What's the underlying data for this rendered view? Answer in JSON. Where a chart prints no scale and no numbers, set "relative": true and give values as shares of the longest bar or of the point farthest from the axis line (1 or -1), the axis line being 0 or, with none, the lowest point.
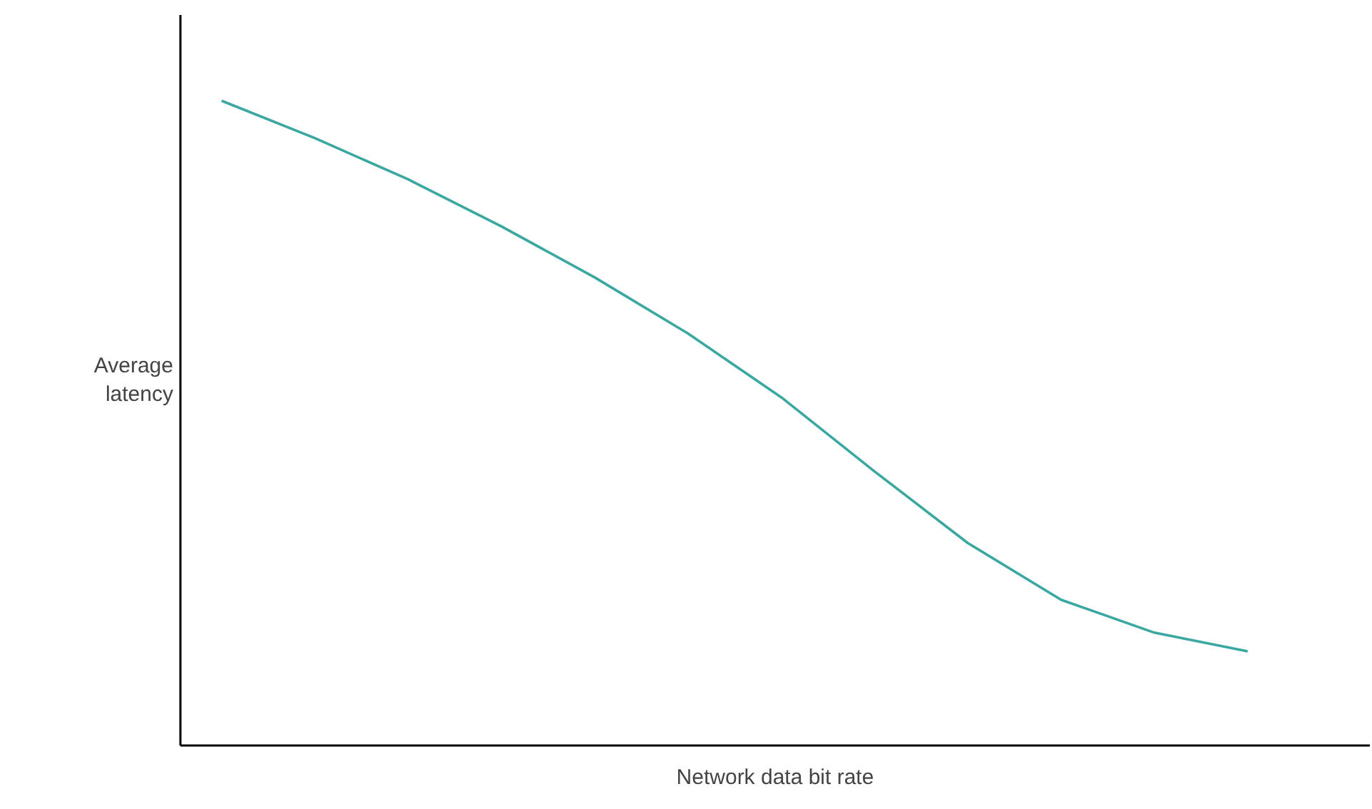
{
  "chart_data": {
    "type": "line",
    "xlabel": "Network data bit rate",
    "ylabel": "Average\nlatency",
    "relative": true,
    "categories": [
      null,
      null,
      null,
      null,
      null,
      null,
      null,
      null,
      null,
      null,
      null,
      null
    ],
    "series": [
      {
        "color": "#3aa8a0",
        "values": [
          1,
          0.942,
          0.878,
          0.805,
          0.726,
          0.639,
          0.54,
          0.425,
          0.314,
          0.226,
          0.175,
          0.146
        ]
      }
    ],
    "line_style": "solid"
  }
}
